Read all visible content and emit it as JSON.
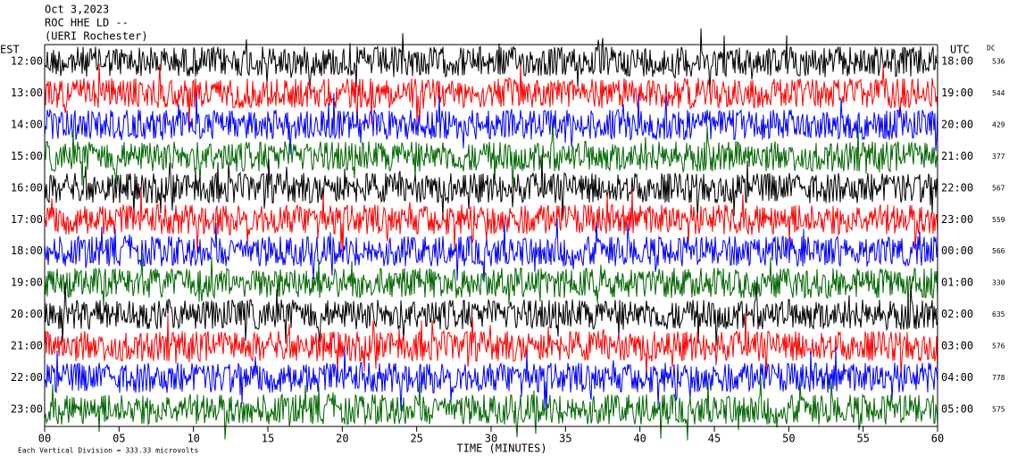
{
  "chart_data": {
    "type": "helicorder",
    "title": "Oct 3,2023",
    "subtitle": "ROC HHE LD --",
    "station": "(UERI Rochester)",
    "left_axis_label": "EST",
    "right_axis_label": "UTC",
    "dc_label": "DC",
    "x_label": "TIME (MINUTES)",
    "scale_note": "Each Vertical Division =  333.33 microvolts",
    "colors": [
      "#000000",
      "#ff0000",
      "#0000ff",
      "#006600"
    ],
    "xlim": [
      0,
      60
    ],
    "xticks": [
      {
        "value": 0,
        "label": "00"
      },
      {
        "value": 5,
        "label": "05"
      },
      {
        "value": 10,
        "label": "10"
      },
      {
        "value": 15,
        "label": "15"
      },
      {
        "value": 20,
        "label": "20"
      },
      {
        "value": 25,
        "label": "25"
      },
      {
        "value": 30,
        "label": "30"
      },
      {
        "value": 35,
        "label": "35"
      },
      {
        "value": 40,
        "label": "40"
      },
      {
        "value": 45,
        "label": "45"
      },
      {
        "value": 50,
        "label": "50"
      },
      {
        "value": 55,
        "label": "55"
      },
      {
        "value": 60,
        "label": "60"
      }
    ],
    "rows": [
      {
        "left": "12:00",
        "right": "18:00",
        "dc": 536
      },
      {
        "left": "13:00",
        "right": "19:00",
        "dc": 544
      },
      {
        "left": "14:00",
        "right": "20:00",
        "dc": 429
      },
      {
        "left": "15:00",
        "right": "21:00",
        "dc": 377
      },
      {
        "left": "16:00",
        "right": "22:00",
        "dc": 567
      },
      {
        "left": "17:00",
        "right": "23:00",
        "dc": 559
      },
      {
        "left": "18:00",
        "right": "00:00",
        "dc": 566
      },
      {
        "left": "19:00",
        "right": "01:00",
        "dc": 330
      },
      {
        "left": "20:00",
        "right": "02:00",
        "dc": 635
      },
      {
        "left": "21:00",
        "right": "03:00",
        "dc": 576
      },
      {
        "left": "22:00",
        "right": "04:00",
        "dc": 778
      },
      {
        "left": "23:00",
        "right": "05:00",
        "dc": 575
      }
    ]
  }
}
